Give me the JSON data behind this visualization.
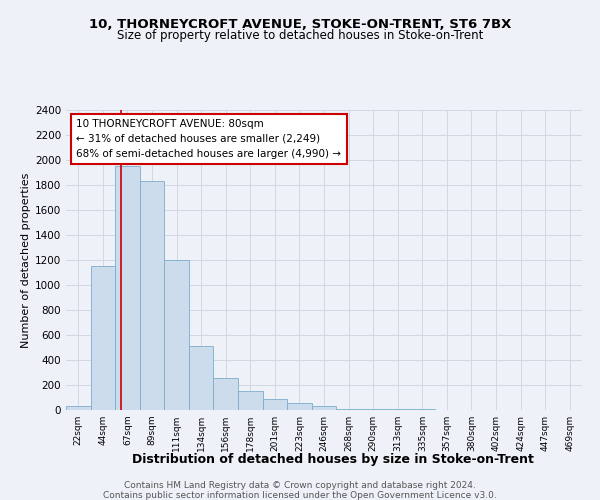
{
  "title1": "10, THORNEYCROFT AVENUE, STOKE-ON-TRENT, ST6 7BX",
  "title2": "Size of property relative to detached houses in Stoke-on-Trent",
  "xlabel": "Distribution of detached houses by size in Stoke-on-Trent",
  "ylabel": "Number of detached properties",
  "footer1": "Contains HM Land Registry data © Crown copyright and database right 2024.",
  "footer2": "Contains public sector information licensed under the Open Government Licence v3.0.",
  "bin_labels": [
    "22sqm",
    "44sqm",
    "67sqm",
    "89sqm",
    "111sqm",
    "134sqm",
    "156sqm",
    "178sqm",
    "201sqm",
    "223sqm",
    "246sqm",
    "268sqm",
    "290sqm",
    "313sqm",
    "335sqm",
    "357sqm",
    "380sqm",
    "402sqm",
    "424sqm",
    "447sqm",
    "469sqm"
  ],
  "bar_heights": [
    35,
    1150,
    1950,
    1830,
    1200,
    510,
    260,
    155,
    85,
    60,
    35,
    10,
    5,
    5,
    5,
    3,
    2,
    1,
    1,
    1,
    1
  ],
  "bar_color": "#ccdcec",
  "bar_edge_color": "#7aadcc",
  "property_line_x": 1.72,
  "annotation_text1": "10 THORNEYCROFT AVENUE: 80sqm",
  "annotation_text2": "← 31% of detached houses are smaller (2,249)",
  "annotation_text3": "68% of semi-detached houses are larger (4,990) →",
  "annotation_box_color": "#cc0000",
  "ylim": [
    0,
    2400
  ],
  "yticks": [
    0,
    200,
    400,
    600,
    800,
    1000,
    1200,
    1400,
    1600,
    1800,
    2000,
    2200,
    2400
  ],
  "bg_color": "#eef2f8",
  "grid_color": "#d0d8e4",
  "title_fontsize": 9.5,
  "subtitle_fontsize": 8.5
}
